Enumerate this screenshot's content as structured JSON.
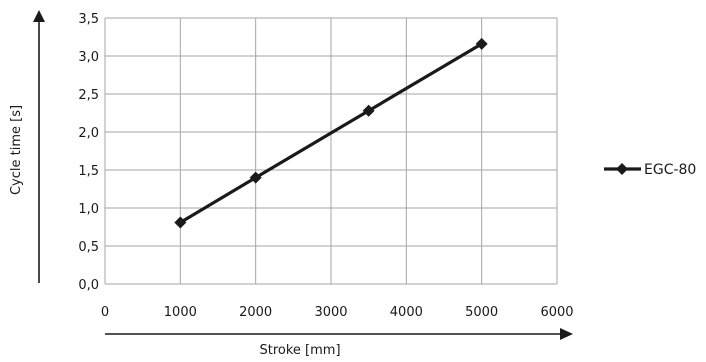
{
  "chart_data": {
    "type": "scatter",
    "xlabel": "Stroke [mm]",
    "ylabel": "Cycle time [s]",
    "xlim": [
      0,
      6000
    ],
    "ylim": [
      0,
      3.5
    ],
    "x_ticks": [
      "0",
      "1000",
      "2000",
      "3000",
      "4000",
      "5000",
      "6000"
    ],
    "y_ticks": [
      "0,0",
      "0,5",
      "1,0",
      "1,5",
      "2,0",
      "2,5",
      "3,0",
      "3,5"
    ],
    "grid": true,
    "legend_position": "right",
    "series": [
      {
        "name": "EGC-80",
        "color": "#1a1a1a",
        "marker": "diamond",
        "x": [
          1000,
          2000,
          3500,
          5000
        ],
        "y": [
          0.81,
          1.4,
          2.28,
          3.16
        ]
      }
    ]
  }
}
